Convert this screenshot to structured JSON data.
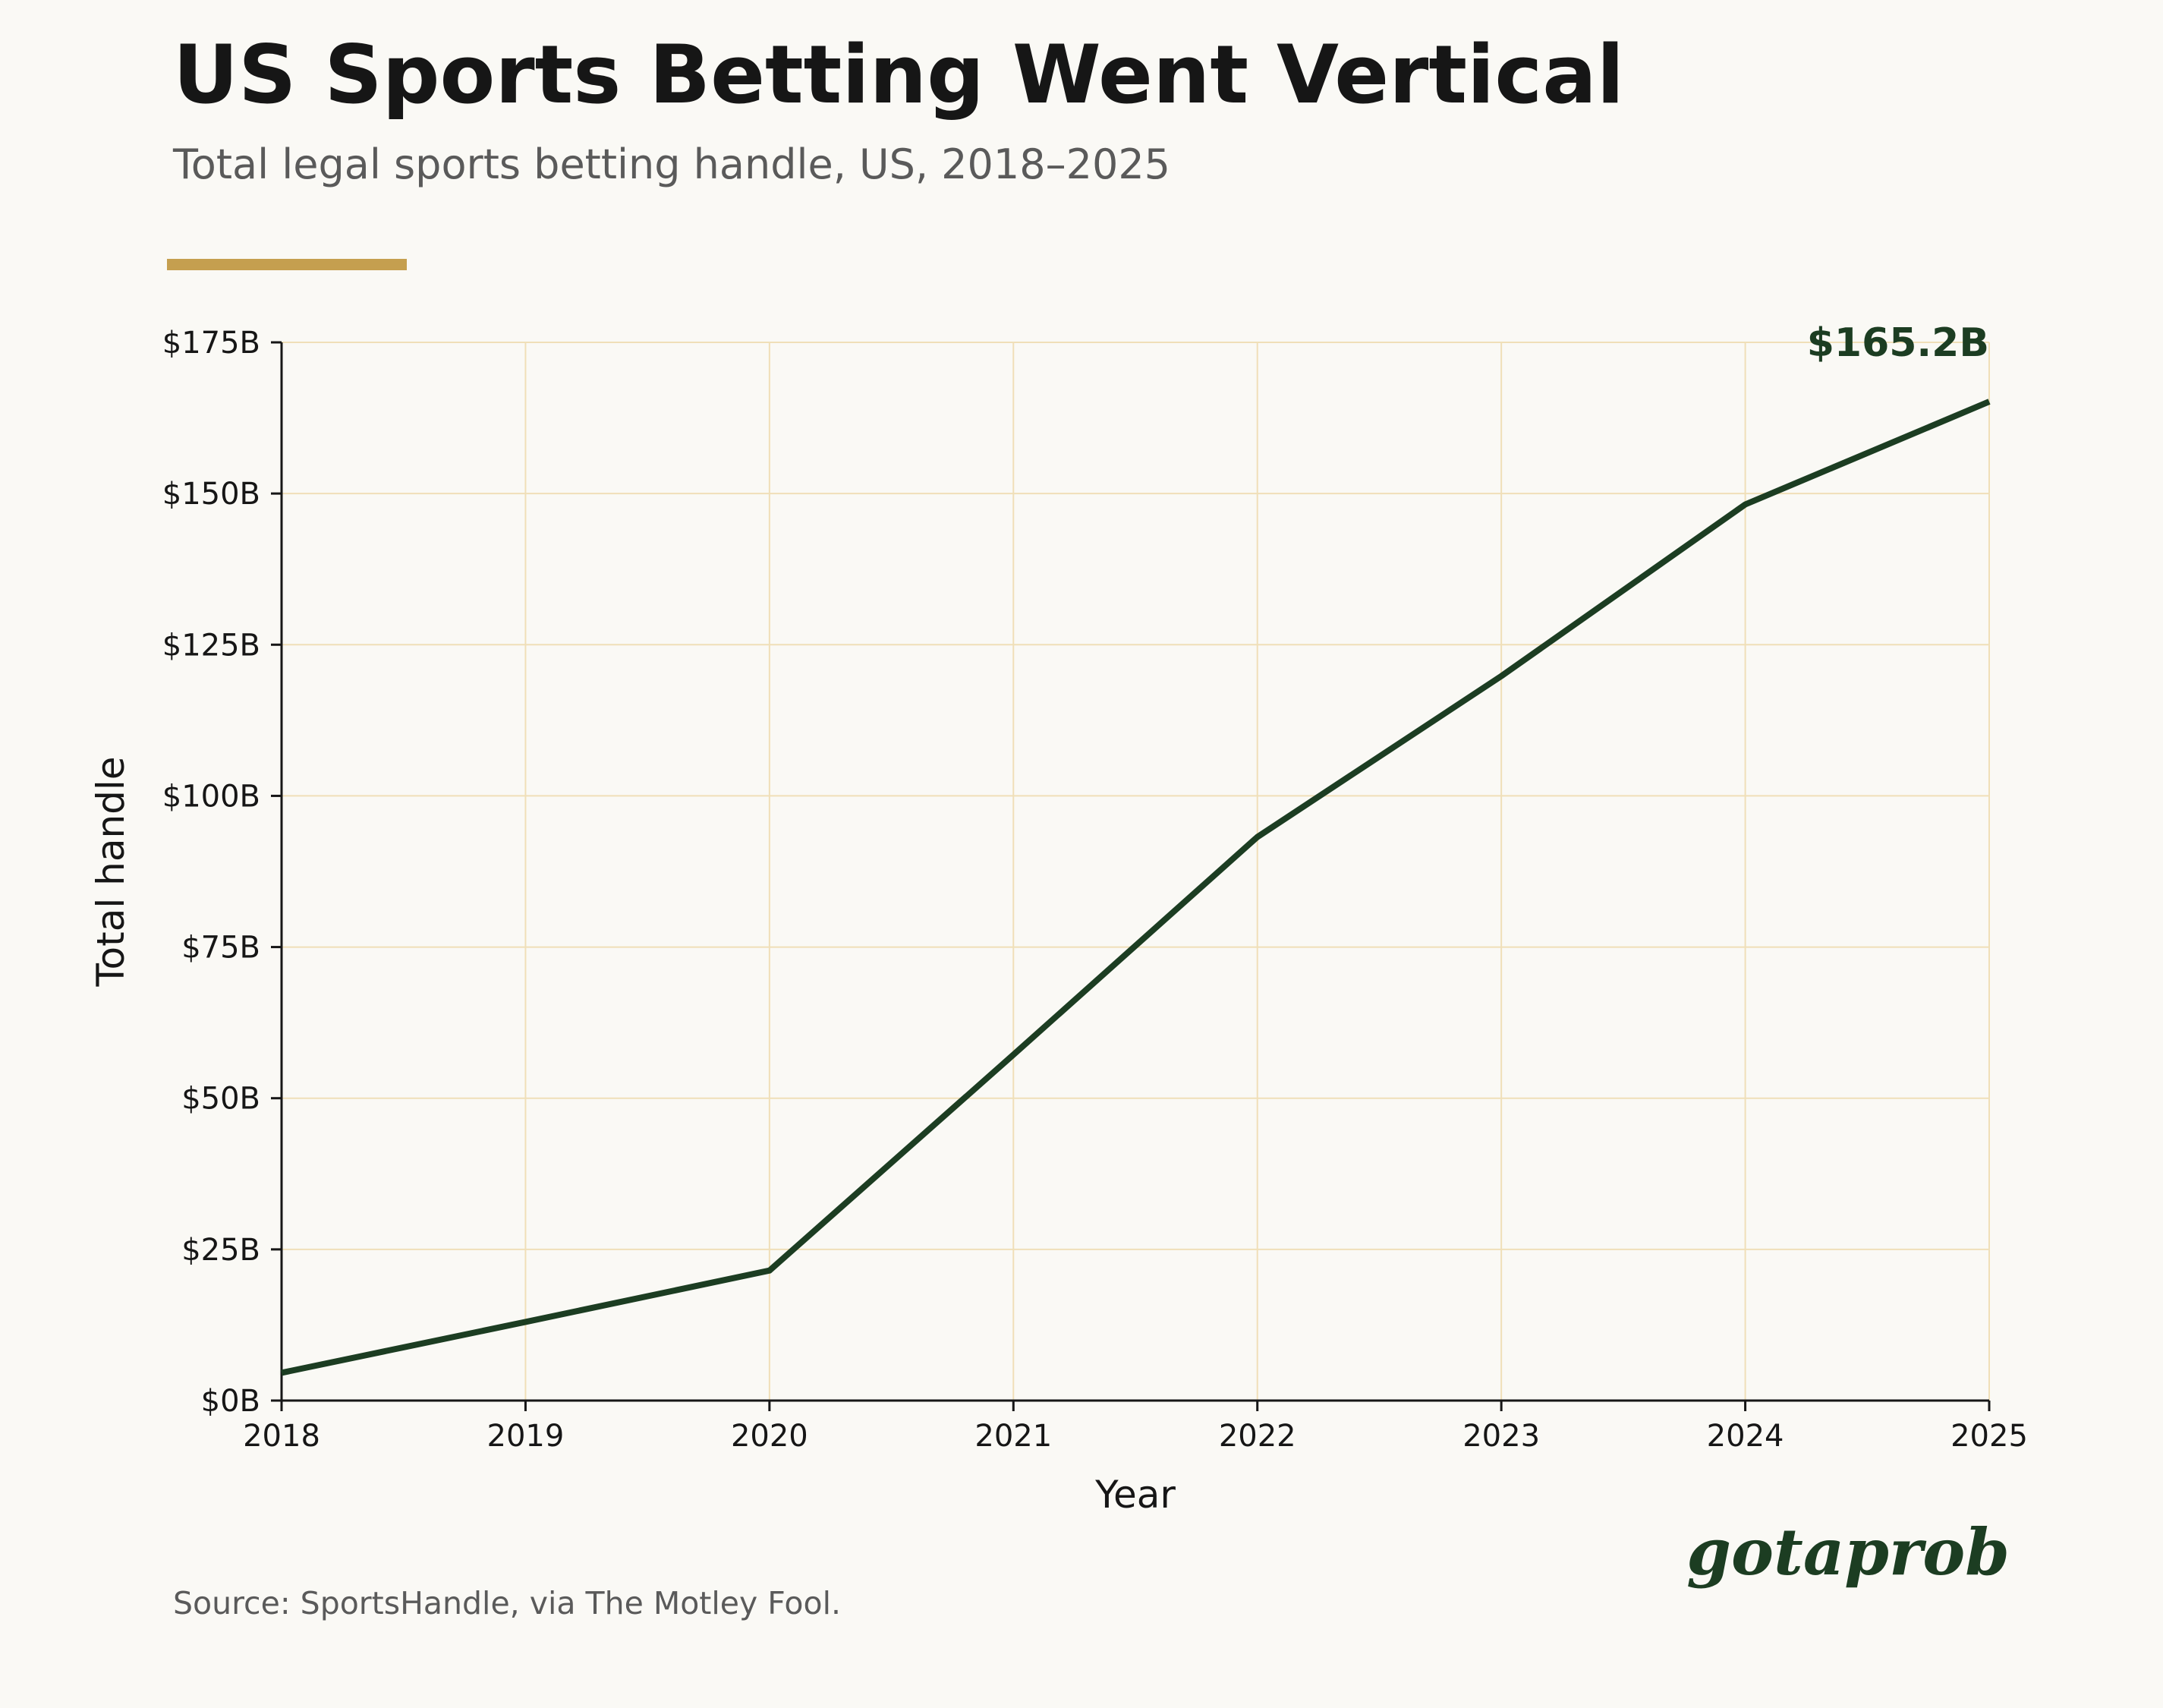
{
  "header": {
    "title": "US Sports Betting Went Vertical",
    "subtitle": "Total legal sports betting handle, US, 2018–2025"
  },
  "colors": {
    "background": "#faf9f5",
    "line": "#1c3d22",
    "grid": "#f0dfb8",
    "accent_bar": "#c59f4f",
    "text": "#161616",
    "muted_text": "#5a5a5a"
  },
  "chart_data": {
    "type": "line",
    "title": "US Sports Betting Went Vertical",
    "subtitle": "Total legal sports betting handle, US, 2018–2025",
    "xlabel": "Year",
    "ylabel": "Total handle",
    "x": [
      2018,
      2019,
      2020,
      2021,
      2022,
      2023,
      2024,
      2025
    ],
    "x_tick_labels": [
      "2018",
      "2019",
      "2020",
      "2021",
      "2022",
      "2023",
      "2024",
      "2025"
    ],
    "series": [
      {
        "values": [
          4.6,
          13.0,
          21.5,
          57.2,
          93.2,
          119.8,
          148.2,
          165.2
        ]
      }
    ],
    "y_ticks": [
      0,
      25,
      50,
      75,
      100,
      125,
      150,
      175
    ],
    "y_tick_labels": [
      "$0B",
      "$25B",
      "$50B",
      "$75B",
      "$100B",
      "$125B",
      "$150B",
      "$175B"
    ],
    "xlim": [
      2018,
      2025
    ],
    "ylim": [
      0,
      175
    ],
    "grid": true,
    "end_label": "$165.2B"
  },
  "footer": {
    "source": "Source: SportsHandle, via The Motley Fool.",
    "brand": "gotaprob"
  }
}
